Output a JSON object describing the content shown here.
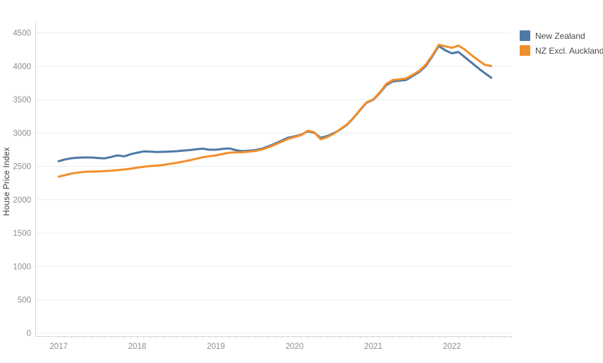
{
  "chart": {
    "y_axis_title": "House Price Index",
    "y_ticks": [
      0,
      500,
      1000,
      1500,
      2000,
      2500,
      3000,
      3500,
      4000,
      4500
    ],
    "x_year_labels": [
      "2017",
      "2018",
      "2019",
      "2020",
      "2021",
      "2022"
    ],
    "colors": {
      "grid": "#ececec",
      "axis_line": "#d7d7d7",
      "tick_label": "#8e8e8e",
      "axis_title_text": "#3b3b3b",
      "legend_text": "#4a4a4a",
      "series_blue": "#4e79a7",
      "series_orange": "#f28e2b"
    }
  },
  "chart_data": {
    "type": "line",
    "title": "",
    "xlabel": "",
    "ylabel": "House Price Index",
    "ylim": [
      0,
      4500
    ],
    "y_tick_step": 500,
    "grid": "horizontal",
    "legend_position": "top-right",
    "x_frequency": "monthly",
    "x_start": "2017-01",
    "x_end": "2022-07",
    "x_year_ticks": [
      2017,
      2018,
      2019,
      2020,
      2021,
      2022
    ],
    "series": [
      {
        "name": "New Zealand",
        "color": "#4e79a7",
        "values": [
          2577,
          2605,
          2623,
          2630,
          2633,
          2633,
          2626,
          2620,
          2641,
          2665,
          2650,
          2683,
          2705,
          2725,
          2720,
          2715,
          2718,
          2722,
          2728,
          2736,
          2745,
          2756,
          2766,
          2750,
          2750,
          2762,
          2770,
          2745,
          2729,
          2735,
          2745,
          2765,
          2800,
          2840,
          2885,
          2930,
          2950,
          2975,
          3025,
          3005,
          2928,
          2955,
          3000,
          3055,
          3125,
          3225,
          3345,
          3455,
          3500,
          3600,
          3720,
          3775,
          3785,
          3795,
          3855,
          3915,
          4005,
          4145,
          4305,
          4240,
          4195,
          4215,
          4135,
          4055,
          3975,
          3900,
          3830
        ]
      },
      {
        "name": "NZ Excl. Auckland",
        "color": "#f28e2b",
        "values": [
          2345,
          2370,
          2393,
          2408,
          2418,
          2422,
          2425,
          2430,
          2435,
          2444,
          2453,
          2465,
          2481,
          2495,
          2505,
          2512,
          2522,
          2538,
          2554,
          2572,
          2592,
          2614,
          2638,
          2652,
          2665,
          2685,
          2705,
          2710,
          2712,
          2720,
          2732,
          2752,
          2785,
          2825,
          2868,
          2912,
          2940,
          2968,
          3035,
          3012,
          2905,
          2940,
          2990,
          3060,
          3130,
          3232,
          3350,
          3460,
          3505,
          3610,
          3738,
          3795,
          3805,
          3818,
          3872,
          3932,
          4025,
          4160,
          4322,
          4300,
          4278,
          4312,
          4248,
          4168,
          4095,
          4025,
          4005
        ]
      }
    ]
  }
}
